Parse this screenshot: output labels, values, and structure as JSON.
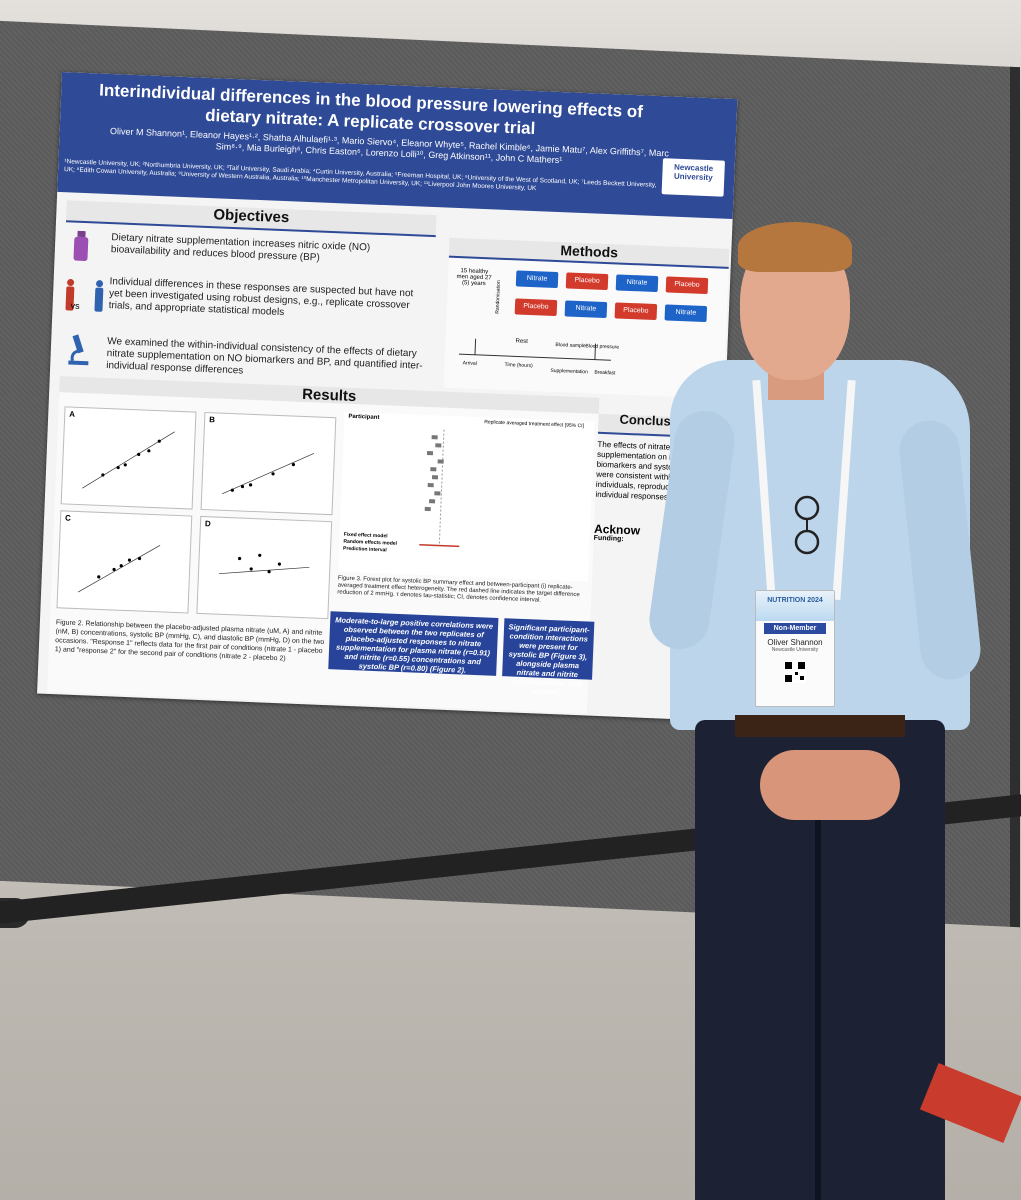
{
  "poster": {
    "title": "Interindividual differences in the blood pressure lowering effects of dietary nitrate: A replicate crossover trial",
    "authors": "Oliver M Shannon¹, Eleanor Hayes¹·², Shatha Alhulaefi¹·³, Mario Siervo⁴, Eleanor Whyte⁵, Rachel Kimble⁶, Jamie Matu⁷, Alex Griffiths⁷, Marc Sim⁸·⁹, Mia Burleigh⁶, Chris Easton⁶, Lorenzo Lolli¹⁰, Greg Atkinson¹¹, John C Mathers¹",
    "affiliations": "¹Newcastle University, UK; ²Northumbria University, UK; ³Taif University, Saudi Arabia; ⁴Curtin University, Australia; ⁵Freeman Hospital, UK; ⁶University of the West of Scotland, UK; ⁷Leeds Beckett University, UK; ⁸Edith Cowan University, Australia; ⁹University of Western Australia, Australia; ¹⁰Manchester Metropolitan University, UK; ¹¹Liverpool John Moores University, UK",
    "logo": "Newcastle University",
    "objectives_heading": "Objectives",
    "objectives": [
      "Dietary nitrate supplementation increases nitric oxide (NO) bioavailability and reduces blood pressure (BP)",
      "Individual differences in these responses are suspected but have not yet been investigated using robust designs, e.g., replicate crossover trials, and appropriate statistical models",
      "We examined the within-individual consistency of the effects of dietary nitrate supplementation on NO biomarkers and BP, and quantified inter-individual response differences"
    ],
    "vs_label": "vs",
    "methods_heading": "Methods",
    "methods": {
      "participants": "15 healthy men aged 27 (5) years",
      "randomisation": "Randomisation",
      "nitrate": "Nitrate",
      "placebo": "Placebo",
      "rest": "Rest",
      "arrival": "Arrival",
      "time": "Time (hours)",
      "blood_sample": "Blood sample",
      "blood_pressure": "Blood pressure",
      "supplementation": "Supplementation",
      "breakfast": "Breakfast"
    },
    "results_heading": "Results",
    "plot_labels": [
      "A",
      "B",
      "C",
      "D"
    ],
    "forest_title": "Replicate averaged treatment effect [95% CI]",
    "forest_participant": "Participant",
    "forest_models": [
      "Fixed effect model",
      "Random effects model",
      "Prediction interval"
    ],
    "figure3_caption": "Figure 3. Forest plot for systolic BP summary effect and between-participant (i) replicate-averaged treatment effect heterogeneity. The red dashed line indicates the target difference reduction of 2 mmHg. τ denotes tau-statistic; CI, denotes confidence interval.",
    "figure2_caption": "Figure 2. Relationship between the placebo-adjusted plasma nitrate (uM, A) and nitrite (nM, B) concentrations, systolic BP (mmHg, C), and diastolic BP (mmHg, D) on the two occasions. \"Response 1\" reflects data for the first pair of conditions (nitrate 1 - placebo 1) and \"response 2\" for the second pair of conditions (nitrate 2 - placebo 2)",
    "note1": "Moderate-to-large positive correlations were observed between the two replicates of placebo-adjusted responses to nitrate supplementation for plasma nitrate (r=0.91) and nitrite (r=0.55) concentrations and systolic BP (r=0.80) (Figure 2).",
    "note2": "Significant participant-condition interactions were present for systolic BP (Figure 3), alongside plasma nitrate and nitrite concentrations (not shown).",
    "conclusions_heading": "Conclusions",
    "conclusions": "The effects of nitrate supplementation on NO biomarkers and systolic BP were consistent within individuals, reproducible individual responses.",
    "acknowledgements": "Acknow",
    "funding": "Funding:"
  },
  "badge": {
    "event": "NUTRITION 2024",
    "tag": "Non-Member",
    "name": "Oliver Shannon",
    "affiliation": "Newcastle University"
  },
  "colors": {
    "poster_blue": "#2f4a97",
    "nitrate": "#1e63c7",
    "placebo": "#d23a2b"
  }
}
